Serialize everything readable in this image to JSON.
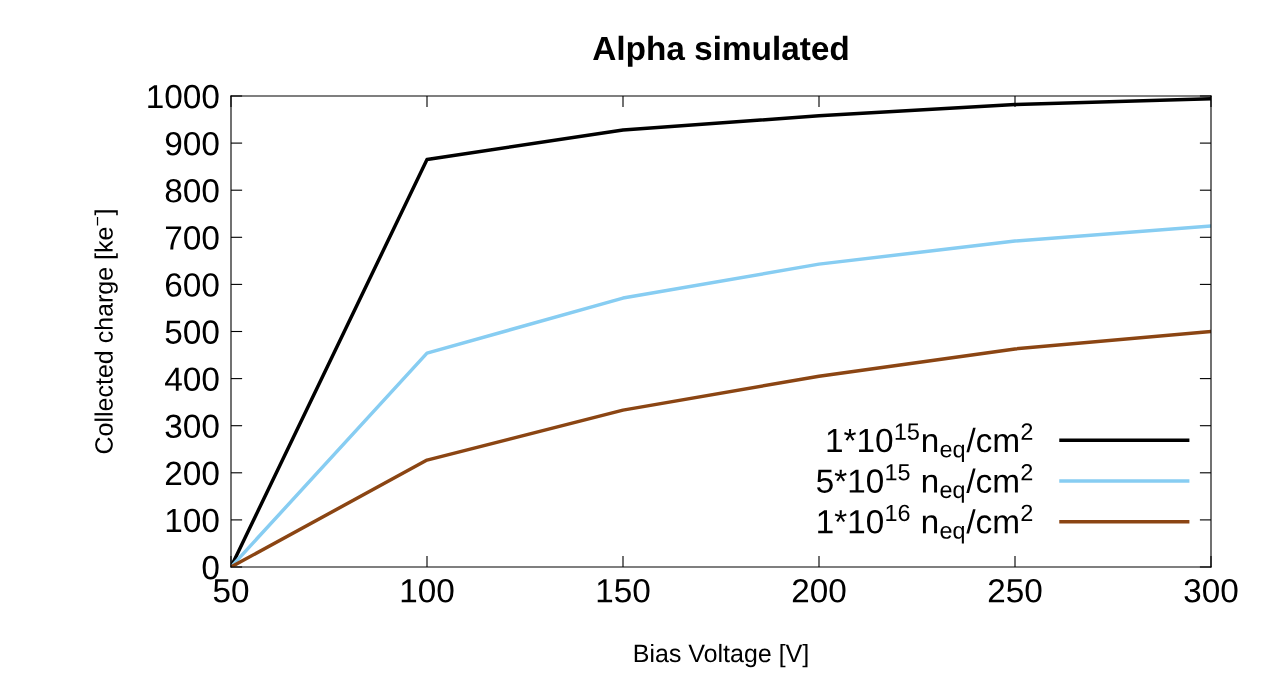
{
  "chart_data": {
    "type": "line",
    "title": "Alpha simulated",
    "xlabel": "Bias Voltage [V]",
    "ylabel": "Collected charge [ke$^{−}$]",
    "x": [
      50,
      100,
      150,
      200,
      250,
      300
    ],
    "series": [
      {
        "name": "1*10$^{15}$n$_{eq}$/cm$^{2}$",
        "color": "#000000",
        "values": [
          0,
          865,
          928,
          958,
          982,
          994
        ]
      },
      {
        "name": "5*10$^{15}$ n$_{eq}$/cm$^{2}$",
        "color": "#87cdf2",
        "values": [
          0,
          454,
          571,
          643,
          692,
          724
        ]
      },
      {
        "name": "1*10$^{16}$ n$_{eq}$/cm$^{2}$",
        "color": "#8b4513",
        "values": [
          0,
          227,
          333,
          405,
          463,
          500
        ]
      }
    ],
    "xlim": [
      50,
      300
    ],
    "xticks": [
      50,
      100,
      150,
      200,
      250,
      300
    ],
    "ylim": [
      0,
      1000
    ],
    "yticks": [
      0,
      100,
      200,
      300,
      400,
      500,
      600,
      700,
      800,
      900,
      1000
    ],
    "grid": false,
    "legend": "bottom right",
    "marker": "none",
    "line_style": "solid"
  }
}
